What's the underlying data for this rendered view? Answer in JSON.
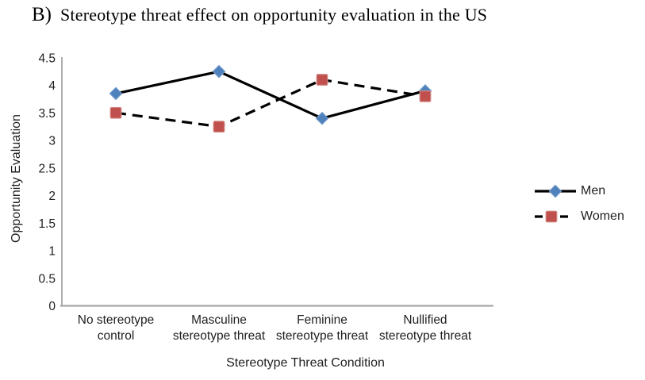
{
  "title": {
    "prefix": "B)",
    "text": "Stereotype threat effect on opportunity evaluation in the US"
  },
  "chart_data": {
    "type": "line",
    "title": "B) Stereotype threat effect on opportunity evaluation in the US",
    "categories": [
      "No stereotype control",
      "Masculine stereotype threat",
      "Feminine stereotype threat",
      "Nullified stereotype threat"
    ],
    "category_label_lines": [
      [
        "No stereotype",
        "control"
      ],
      [
        "Masculine",
        "stereotype threat"
      ],
      [
        "Feminine",
        "stereotype threat"
      ],
      [
        "Nullified",
        "stereotype threat"
      ]
    ],
    "series": [
      {
        "name": "Men",
        "values": [
          3.85,
          4.25,
          3.4,
          3.9
        ],
        "line_style": "solid",
        "line_color": "#000000",
        "marker": "diamond",
        "marker_color": "#4f81bd",
        "marker_border": "#6f97c7"
      },
      {
        "name": "Women",
        "values": [
          3.5,
          3.25,
          4.1,
          3.8
        ],
        "line_style": "dashed",
        "line_color": "#000000",
        "marker": "square",
        "marker_color": "#c0504d",
        "marker_border": "#d28884"
      }
    ],
    "xlabel": "Stereotype Threat Condition",
    "ylabel": "Opportunity Evaluation",
    "ylim": [
      0,
      4.5
    ],
    "ytick_step": 0.5,
    "yticks": [
      "0",
      "0.5",
      "1",
      "1.5",
      "2",
      "2.5",
      "3",
      "3.5",
      "4",
      "4.5"
    ],
    "grid": false,
    "legend_position": "right"
  },
  "colors": {
    "axis_line": "#a6a6a6",
    "tick_text": "#1f1f1f",
    "series_line": "#000000"
  }
}
